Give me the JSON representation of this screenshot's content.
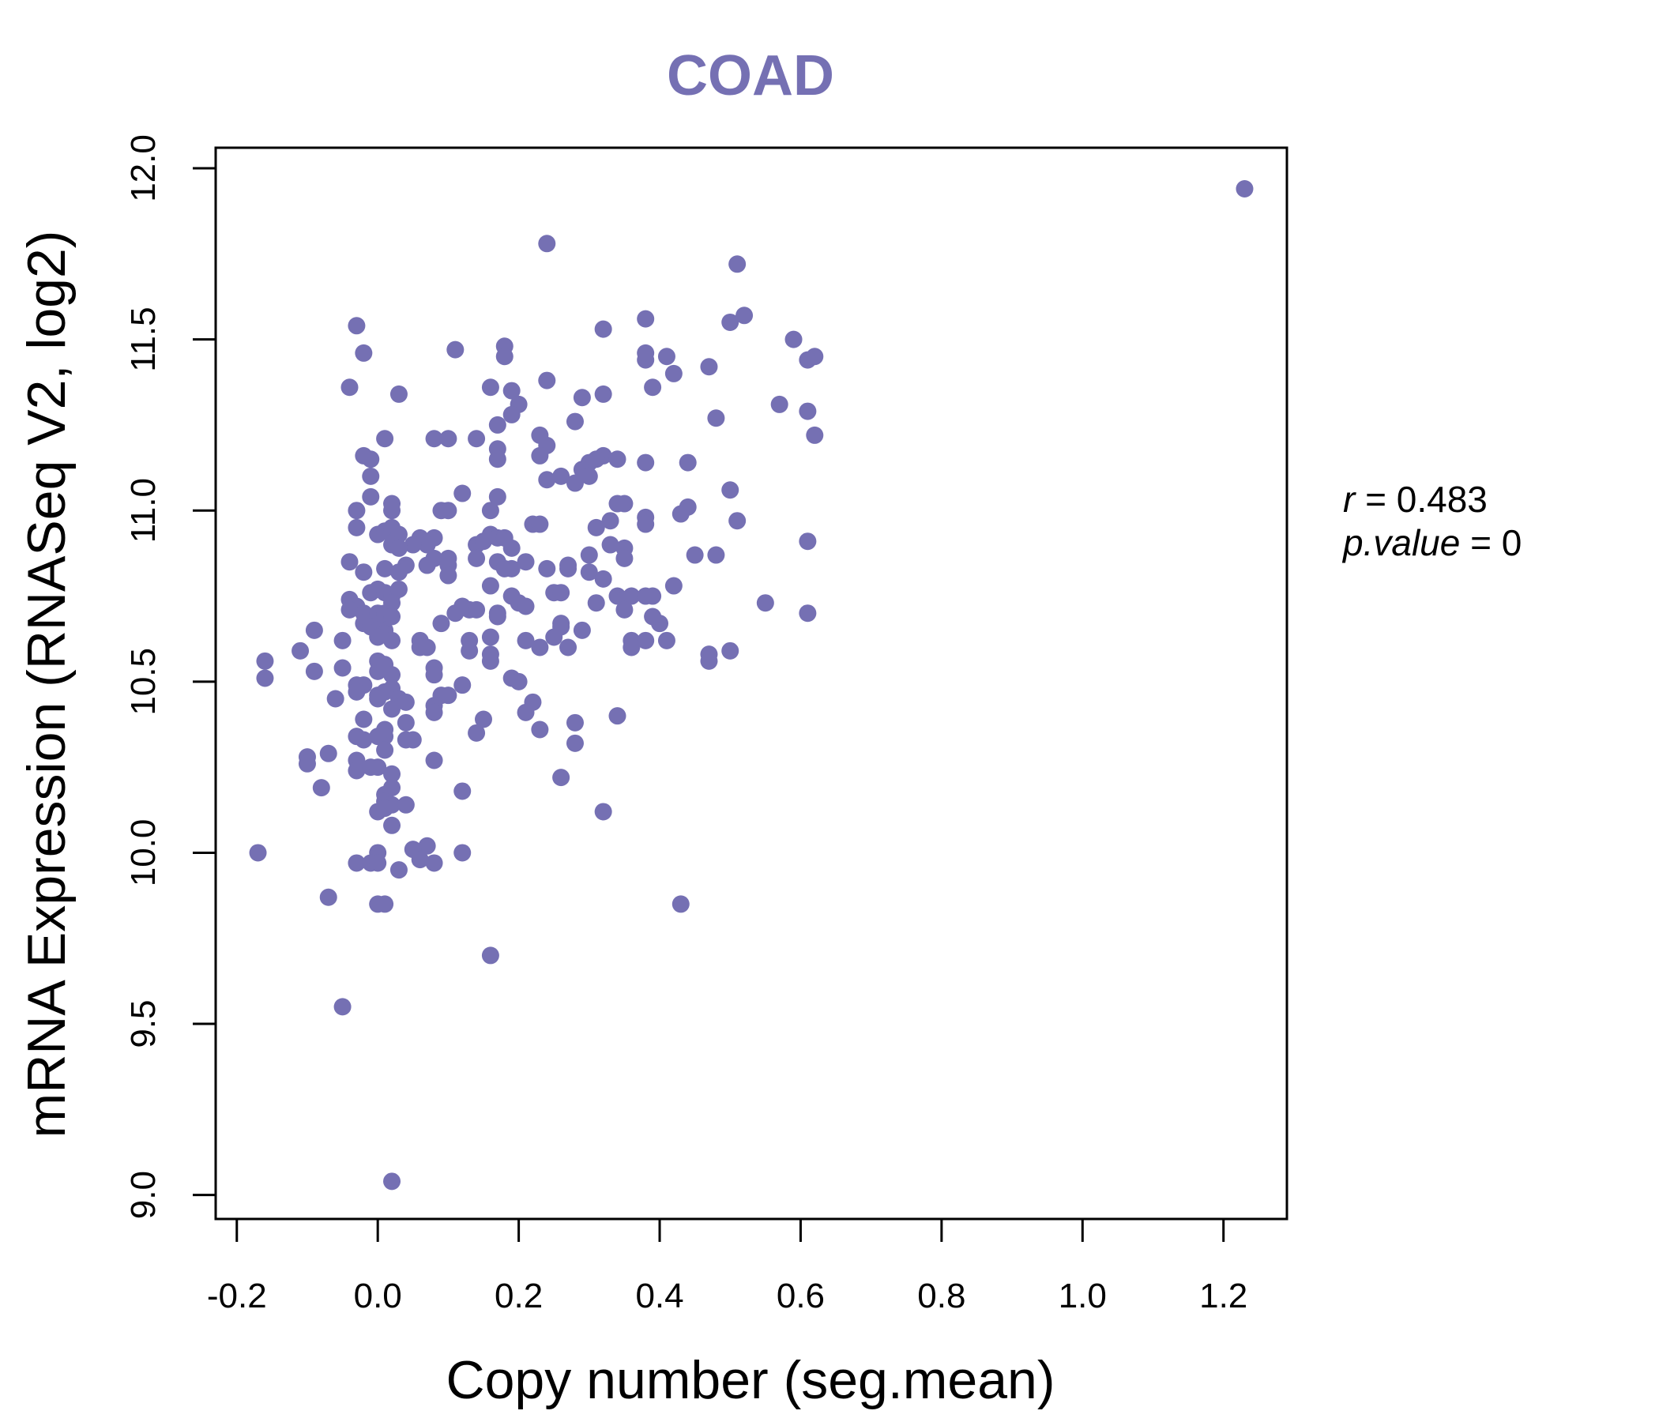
{
  "chart_data": {
    "type": "scatter",
    "title": "COAD",
    "xlabel": "Copy number (seg.mean)",
    "ylabel": "mRNA Expression (RNASeq V2, log2)",
    "xlim": [
      -0.23,
      1.29
    ],
    "ylim": [
      8.93,
      12.06
    ],
    "x_ticks": [
      -0.2,
      0.0,
      0.2,
      0.4,
      0.6,
      0.8,
      1.0,
      1.2
    ],
    "x_tick_labels": [
      "-0.2",
      "0.0",
      "0.2",
      "0.4",
      "0.6",
      "0.8",
      "1.0",
      "1.2"
    ],
    "y_ticks": [
      9.0,
      9.5,
      10.0,
      10.5,
      11.0,
      11.5,
      12.0
    ],
    "y_tick_labels": [
      "9.0",
      "9.5",
      "10.0",
      "10.5",
      "11.0",
      "11.5",
      "12.0"
    ],
    "grid": false,
    "point_color": "#7570b3",
    "stats": {
      "r_label": "r",
      "r_value": "0.483",
      "p_label": "p.value",
      "p_value": "0"
    },
    "points": [
      [
        1.23,
        11.94
      ],
      [
        0.24,
        11.78
      ],
      [
        0.51,
        11.72
      ],
      [
        0.52,
        11.57
      ],
      [
        0.5,
        11.55
      ],
      [
        0.38,
        11.56
      ],
      [
        0.32,
        11.53
      ],
      [
        0.59,
        11.5
      ],
      [
        0.62,
        11.45
      ],
      [
        0.61,
        11.44
      ],
      [
        0.38,
        11.44
      ],
      [
        0.38,
        11.46
      ],
      [
        0.41,
        11.45
      ],
      [
        0.42,
        11.4
      ],
      [
        0.47,
        11.42
      ],
      [
        0.39,
        11.36
      ],
      [
        0.57,
        11.31
      ],
      [
        0.61,
        11.29
      ],
      [
        0.48,
        11.27
      ],
      [
        0.62,
        11.22
      ],
      [
        0.44,
        11.14
      ],
      [
        0.51,
        10.97
      ],
      [
        0.5,
        11.06
      ],
      [
        0.44,
        11.01
      ],
      [
        0.43,
        10.99
      ],
      [
        0.61,
        10.91
      ],
      [
        0.45,
        10.87
      ],
      [
        0.48,
        10.87
      ],
      [
        0.55,
        10.73
      ],
      [
        0.61,
        10.7
      ],
      [
        0.42,
        10.78
      ],
      [
        0.4,
        10.67
      ],
      [
        0.41,
        10.62
      ],
      [
        0.47,
        10.58
      ],
      [
        0.47,
        10.56
      ],
      [
        0.5,
        10.59
      ],
      [
        0.43,
        9.85
      ],
      [
        -0.03,
        11.54
      ],
      [
        -0.02,
        11.46
      ],
      [
        0.11,
        11.47
      ],
      [
        0.18,
        11.48
      ],
      [
        0.18,
        11.45
      ],
      [
        -0.04,
        11.36
      ],
      [
        0.03,
        11.34
      ],
      [
        0.16,
        11.36
      ],
      [
        0.19,
        11.35
      ],
      [
        0.24,
        11.38
      ],
      [
        0.2,
        11.31
      ],
      [
        0.19,
        11.28
      ],
      [
        0.29,
        11.33
      ],
      [
        0.32,
        11.34
      ],
      [
        0.28,
        11.26
      ],
      [
        0.17,
        11.25
      ],
      [
        0.23,
        11.22
      ],
      [
        0.01,
        11.21
      ],
      [
        0.08,
        11.21
      ],
      [
        0.1,
        11.21
      ],
      [
        0.14,
        11.21
      ],
      [
        0.24,
        11.19
      ],
      [
        0.23,
        11.16
      ],
      [
        -0.02,
        11.16
      ],
      [
        -0.01,
        11.15
      ],
      [
        0.17,
        11.18
      ],
      [
        0.17,
        11.15
      ],
      [
        0.32,
        11.16
      ],
      [
        0.31,
        11.15
      ],
      [
        0.34,
        11.15
      ],
      [
        0.3,
        11.14
      ],
      [
        0.38,
        11.14
      ],
      [
        0.29,
        11.12
      ],
      [
        0.26,
        11.1
      ],
      [
        0.3,
        11.1
      ],
      [
        0.24,
        11.09
      ],
      [
        0.28,
        11.08
      ],
      [
        -0.01,
        11.1
      ],
      [
        -0.01,
        11.04
      ],
      [
        0.12,
        11.05
      ],
      [
        0.17,
        11.04
      ],
      [
        0.16,
        11.0
      ],
      [
        0.02,
        11.02
      ],
      [
        0.02,
        11.0
      ],
      [
        0.09,
        11.0
      ],
      [
        0.1,
        11.0
      ],
      [
        0.34,
        11.02
      ],
      [
        0.35,
        11.02
      ],
      [
        0.38,
        10.98
      ],
      [
        0.38,
        10.96
      ],
      [
        0.33,
        10.97
      ],
      [
        0.31,
        10.95
      ],
      [
        -0.03,
        11.0
      ],
      [
        -0.03,
        10.95
      ],
      [
        0.0,
        10.93
      ],
      [
        0.01,
        10.94
      ],
      [
        0.02,
        10.95
      ],
      [
        0.03,
        10.93
      ],
      [
        0.06,
        10.92
      ],
      [
        0.08,
        10.92
      ],
      [
        0.07,
        10.9
      ],
      [
        0.05,
        10.9
      ],
      [
        0.14,
        10.9
      ],
      [
        0.15,
        10.91
      ],
      [
        0.16,
        10.93
      ],
      [
        0.17,
        10.92
      ],
      [
        0.18,
        10.92
      ],
      [
        0.19,
        10.89
      ],
      [
        0.22,
        10.96
      ],
      [
        0.23,
        10.96
      ],
      [
        0.33,
        10.9
      ],
      [
        0.35,
        10.89
      ],
      [
        0.35,
        10.86
      ],
      [
        0.3,
        10.87
      ],
      [
        -0.04,
        10.85
      ],
      [
        0.02,
        10.9
      ],
      [
        0.03,
        10.89
      ],
      [
        0.08,
        10.86
      ],
      [
        0.1,
        10.86
      ],
      [
        0.1,
        10.84
      ],
      [
        0.07,
        10.84
      ],
      [
        0.04,
        10.84
      ],
      [
        0.14,
        10.86
      ],
      [
        0.17,
        10.85
      ],
      [
        0.18,
        10.83
      ],
      [
        0.19,
        10.83
      ],
      [
        0.21,
        10.85
      ],
      [
        0.24,
        10.83
      ],
      [
        0.27,
        10.84
      ],
      [
        0.27,
        10.83
      ],
      [
        -0.02,
        10.82
      ],
      [
        0.01,
        10.83
      ],
      [
        0.03,
        10.82
      ],
      [
        0.1,
        10.81
      ],
      [
        0.3,
        10.82
      ],
      [
        0.32,
        10.8
      ],
      [
        0.16,
        10.78
      ],
      [
        -0.04,
        10.74
      ],
      [
        -0.03,
        10.72
      ],
      [
        -0.01,
        10.76
      ],
      [
        0.0,
        10.77
      ],
      [
        0.01,
        10.76
      ],
      [
        0.02,
        10.75
      ],
      [
        0.03,
        10.77
      ],
      [
        0.02,
        10.73
      ],
      [
        0.19,
        10.75
      ],
      [
        0.2,
        10.73
      ],
      [
        0.21,
        10.72
      ],
      [
        0.25,
        10.76
      ],
      [
        0.26,
        10.76
      ],
      [
        0.31,
        10.73
      ],
      [
        0.34,
        10.75
      ],
      [
        0.35,
        10.74
      ],
      [
        0.36,
        10.75
      ],
      [
        0.38,
        10.75
      ],
      [
        0.39,
        10.75
      ],
      [
        0.35,
        10.71
      ],
      [
        0.39,
        10.69
      ],
      [
        -0.04,
        10.71
      ],
      [
        -0.02,
        10.7
      ],
      [
        -0.01,
        10.69
      ],
      [
        0.0,
        10.7
      ],
      [
        0.01,
        10.7
      ],
      [
        0.01,
        10.69
      ],
      [
        0.02,
        10.69
      ],
      [
        0.12,
        10.72
      ],
      [
        0.13,
        10.71
      ],
      [
        0.14,
        10.71
      ],
      [
        0.11,
        10.7
      ],
      [
        0.09,
        10.67
      ],
      [
        0.17,
        10.7
      ],
      [
        0.17,
        10.69
      ],
      [
        0.26,
        10.67
      ],
      [
        0.26,
        10.66
      ],
      [
        0.29,
        10.65
      ],
      [
        -0.09,
        10.65
      ],
      [
        -0.02,
        10.67
      ],
      [
        -0.01,
        10.66
      ],
      [
        0.0,
        10.65
      ],
      [
        0.01,
        10.65
      ],
      [
        0.01,
        10.64
      ],
      [
        0.0,
        10.63
      ],
      [
        0.02,
        10.62
      ],
      [
        0.06,
        10.62
      ],
      [
        0.06,
        10.6
      ],
      [
        0.07,
        10.6
      ],
      [
        0.13,
        10.62
      ],
      [
        0.13,
        10.59
      ],
      [
        0.16,
        10.63
      ],
      [
        0.21,
        10.62
      ],
      [
        0.23,
        10.6
      ],
      [
        0.25,
        10.63
      ],
      [
        0.27,
        10.6
      ],
      [
        0.36,
        10.62
      ],
      [
        0.36,
        10.6
      ],
      [
        0.38,
        10.62
      ],
      [
        -0.05,
        10.62
      ],
      [
        -0.11,
        10.59
      ],
      [
        -0.16,
        10.56
      ],
      [
        -0.16,
        10.51
      ],
      [
        -0.09,
        10.53
      ],
      [
        -0.05,
        10.54
      ],
      [
        0.0,
        10.56
      ],
      [
        0.0,
        10.53
      ],
      [
        0.01,
        10.55
      ],
      [
        0.02,
        10.52
      ],
      [
        0.02,
        10.48
      ],
      [
        0.08,
        10.54
      ],
      [
        0.08,
        10.52
      ],
      [
        0.16,
        10.58
      ],
      [
        0.16,
        10.56
      ],
      [
        0.19,
        10.51
      ],
      [
        0.2,
        10.5
      ],
      [
        -0.03,
        10.49
      ],
      [
        -0.02,
        10.49
      ],
      [
        -0.03,
        10.47
      ],
      [
        0.0,
        10.46
      ],
      [
        0.01,
        10.47
      ],
      [
        0.0,
        10.45
      ],
      [
        0.03,
        10.45
      ],
      [
        0.09,
        10.46
      ],
      [
        0.1,
        10.46
      ],
      [
        0.12,
        10.49
      ],
      [
        0.08,
        10.43
      ],
      [
        0.04,
        10.44
      ],
      [
        -0.06,
        10.45
      ],
      [
        0.02,
        10.42
      ],
      [
        0.08,
        10.41
      ],
      [
        0.22,
        10.44
      ],
      [
        0.21,
        10.41
      ],
      [
        0.15,
        10.39
      ],
      [
        0.04,
        10.38
      ],
      [
        -0.02,
        10.39
      ],
      [
        0.01,
        10.36
      ],
      [
        0.01,
        10.34
      ],
      [
        -0.03,
        10.34
      ],
      [
        -0.02,
        10.33
      ],
      [
        0.0,
        10.34
      ],
      [
        0.04,
        10.33
      ],
      [
        0.05,
        10.33
      ],
      [
        0.14,
        10.35
      ],
      [
        0.23,
        10.36
      ],
      [
        0.28,
        10.38
      ],
      [
        0.28,
        10.32
      ],
      [
        0.34,
        10.4
      ],
      [
        0.01,
        10.3
      ],
      [
        -0.07,
        10.29
      ],
      [
        -0.1,
        10.28
      ],
      [
        -0.1,
        10.26
      ],
      [
        -0.03,
        10.27
      ],
      [
        -0.03,
        10.24
      ],
      [
        -0.01,
        10.25
      ],
      [
        0.0,
        10.25
      ],
      [
        0.02,
        10.23
      ],
      [
        0.08,
        10.27
      ],
      [
        -0.08,
        10.19
      ],
      [
        0.12,
        10.18
      ],
      [
        0.26,
        10.22
      ],
      [
        0.02,
        10.19
      ],
      [
        0.01,
        10.17
      ],
      [
        0.01,
        10.15
      ],
      [
        0.02,
        10.14
      ],
      [
        0.04,
        10.14
      ],
      [
        0.0,
        10.12
      ],
      [
        0.01,
        10.13
      ],
      [
        0.32,
        10.12
      ],
      [
        0.02,
        10.08
      ],
      [
        0.07,
        10.02
      ],
      [
        0.05,
        10.01
      ],
      [
        0.0,
        10.0
      ],
      [
        0.12,
        10.0
      ],
      [
        -0.17,
        10.0
      ],
      [
        -0.03,
        9.97
      ],
      [
        -0.01,
        9.97
      ],
      [
        0.0,
        9.97
      ],
      [
        0.06,
        9.98
      ],
      [
        0.08,
        9.97
      ],
      [
        0.03,
        9.95
      ],
      [
        -0.07,
        9.87
      ],
      [
        0.0,
        9.85
      ],
      [
        0.01,
        9.85
      ],
      [
        0.16,
        9.7
      ],
      [
        -0.05,
        9.55
      ],
      [
        0.02,
        9.04
      ]
    ]
  }
}
